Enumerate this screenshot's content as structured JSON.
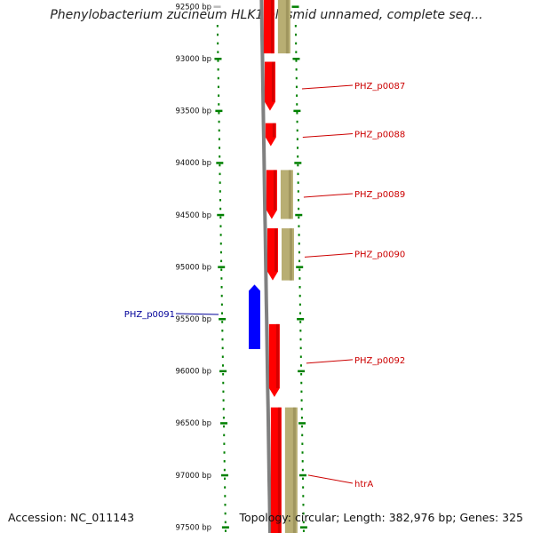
{
  "header": {
    "title": "Phenylobacterium zucineum HLK1 plasmid unnamed, complete seq..."
  },
  "footer": {
    "accession": "Accession: NC_011143",
    "summary": "Topology: circular; Length: 382,976 bp; Genes: 325"
  },
  "colors": {
    "forward_gene": "#ff0000",
    "reverse_gene": "#0000ff",
    "cds_feature": "#b8ae73",
    "backbone": "#808080",
    "tick": "#008000",
    "forward_label": "#cc0000",
    "reverse_label": "#000099"
  },
  "scale": {
    "ticks": [
      "92500 bp",
      "93000 bp",
      "93500 bp",
      "94000 bp",
      "94500 bp",
      "95000 bp",
      "95500 bp",
      "96000 bp",
      "96500 bp",
      "97000 bp",
      "97500 bp"
    ]
  },
  "genes": [
    {
      "name": "",
      "strand": "+",
      "start": 92400,
      "end": 92950,
      "cds": true,
      "arrow": false
    },
    {
      "name": "PHZ_p0087",
      "strand": "+",
      "start": 93030,
      "end": 93500,
      "cds": false,
      "arrow": true
    },
    {
      "name": "PHZ_p0088",
      "strand": "+",
      "start": 93620,
      "end": 93840,
      "cds": false,
      "arrow": true
    },
    {
      "name": "PHZ_p0089",
      "strand": "+",
      "start": 94070,
      "end": 94540,
      "cds": true,
      "arrow": true
    },
    {
      "name": "PHZ_p0090",
      "strand": "+",
      "start": 94630,
      "end": 95130,
      "cds": true,
      "arrow": true
    },
    {
      "name": "PHZ_p0091",
      "strand": "-",
      "start": 95170,
      "end": 95790,
      "cds": false,
      "arrow": true
    },
    {
      "name": "PHZ_p0092",
      "strand": "+",
      "start": 95550,
      "end": 96250,
      "cds": false,
      "arrow": true
    },
    {
      "name": "htrA",
      "strand": "+",
      "start": 96350,
      "end": 97600,
      "cds": true,
      "arrow": false
    }
  ]
}
